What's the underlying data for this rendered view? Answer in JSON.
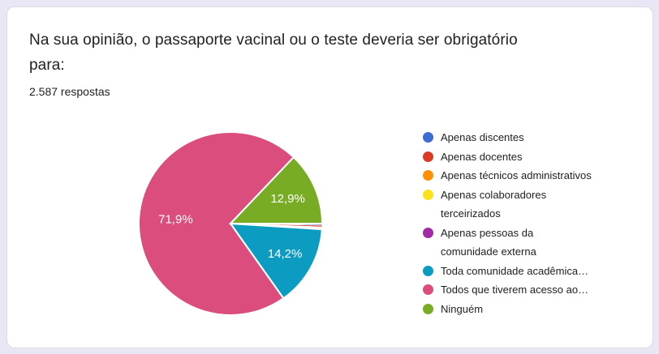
{
  "header": {
    "title": "Na sua opinião, o passaporte vacinal ou o teste deveria ser obrigatório para:",
    "responses_count": "2.587 respostas"
  },
  "chart_data": {
    "type": "pie",
    "title": "Na sua opinião, o passaporte vacinal ou o teste deveria ser obrigatório para:",
    "subtitle": "2.587 respostas",
    "total_responses": 2587,
    "legend_position": "right",
    "start": "3-oclock-clockwise",
    "slices": [
      {
        "label": "Apenas discentes",
        "legend_text": "Apenas discentes",
        "pct": 0.3,
        "pct_label": "",
        "color": "#3D6CD2"
      },
      {
        "label": "Apenas docentes",
        "legend_text": "Apenas docentes",
        "pct": 0.3,
        "pct_label": "",
        "color": "#D93B25"
      },
      {
        "label": "Apenas técnicos administrativos",
        "legend_text": "Apenas técnicos administrativos",
        "pct": 0.1,
        "pct_label": "",
        "color": "#FF9100"
      },
      {
        "label": "Apenas colaboradores terceirizados",
        "legend_text": "Apenas colaboradores\nterceirizados",
        "pct": 0.1,
        "pct_label": "",
        "color": "#FFE11A"
      },
      {
        "label": "Apenas pessoas da comunidade externa",
        "legend_text": "Apenas pessoas da\ncomunidade externa",
        "pct": 0.2,
        "pct_label": "",
        "color": "#A22BA5"
      },
      {
        "label": "Toda comunidade acadêmica…",
        "legend_text": "Toda comunidade acadêmica…",
        "pct": 14.2,
        "pct_label": "14,2%",
        "color": "#0C9CC2"
      },
      {
        "label": "Todos que tiverem acesso ao…",
        "legend_text": "Todos que tiverem acesso ao…",
        "pct": 71.9,
        "pct_label": "71,9%",
        "color": "#DB4D7C"
      },
      {
        "label": "Ninguém",
        "legend_text": "Ninguém",
        "pct": 12.9,
        "pct_label": "12,9%",
        "color": "#79AC25"
      }
    ]
  },
  "colors": {
    "page_background": "#E9E6F5",
    "card_background": "#FFFFFF",
    "card_border": "#DADCE0",
    "title_text": "#202124",
    "legend_text": "#202124",
    "pie_label_text": "#FFFFFF"
  }
}
